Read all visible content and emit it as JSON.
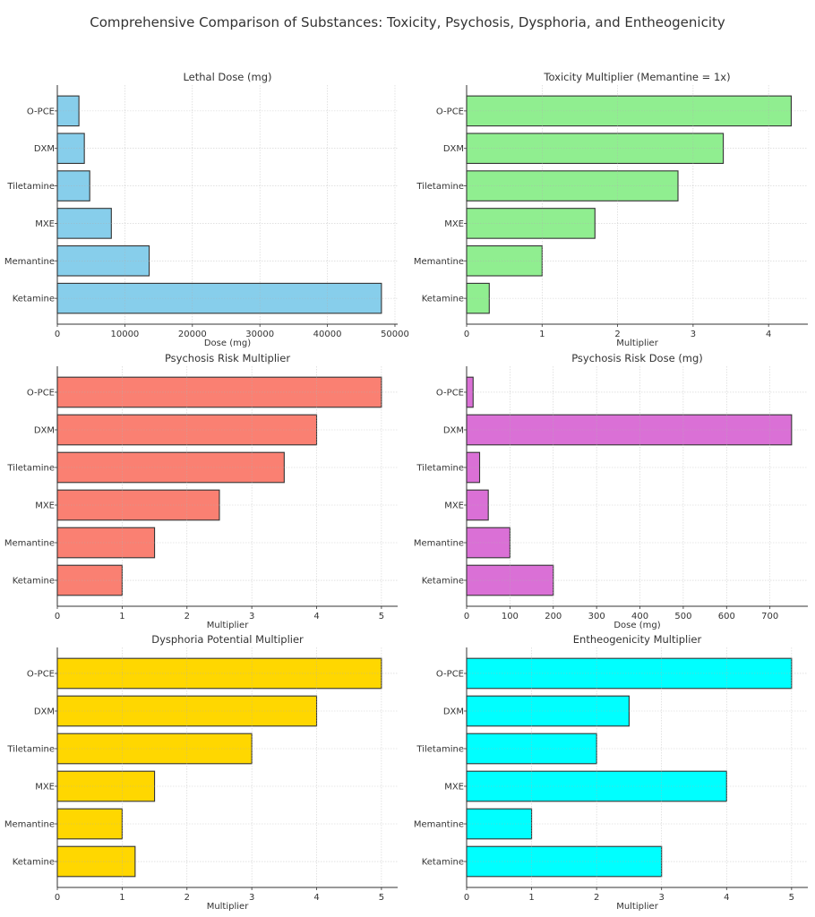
{
  "title": "Comprehensive Comparison of Substances: Toxicity, Psychosis, Dysphoria, and Entheogenicity",
  "chart_data": [
    {
      "type": "bar",
      "orientation": "horizontal",
      "title": "Lethal Dose (mg)",
      "xlabel": "Dose (mg)",
      "ylabel": "",
      "categories": [
        "Ketamine",
        "Memantine",
        "MXE",
        "Tiletamine",
        "DXM",
        "O-PCE"
      ],
      "values": [
        48000,
        13600,
        8000,
        4800,
        4000,
        3200
      ],
      "xlim": [
        0,
        50400
      ],
      "xticks": [
        0,
        10000,
        20000,
        30000,
        40000,
        50000
      ],
      "color": "#87CEEB",
      "grid": true
    },
    {
      "type": "bar",
      "orientation": "horizontal",
      "title": "Toxicity Multiplier (Memantine = 1x)",
      "xlabel": "Multiplier",
      "ylabel": "",
      "categories": [
        "Ketamine",
        "Memantine",
        "MXE",
        "Tiletamine",
        "DXM",
        "O-PCE"
      ],
      "values": [
        0.3,
        1.0,
        1.7,
        2.8,
        3.4,
        4.3
      ],
      "xlim": [
        0,
        4.52
      ],
      "xticks": [
        0,
        1,
        2,
        3,
        4
      ],
      "color": "#90EE90",
      "grid": true
    },
    {
      "type": "bar",
      "orientation": "horizontal",
      "title": "Psychosis Risk Multiplier",
      "xlabel": "Multiplier",
      "ylabel": "",
      "categories": [
        "Ketamine",
        "Memantine",
        "MXE",
        "Tiletamine",
        "DXM",
        "O-PCE"
      ],
      "values": [
        1,
        1.5,
        2.5,
        3.5,
        4,
        5
      ],
      "xlim": [
        0,
        5.25
      ],
      "xticks": [
        0,
        1,
        2,
        3,
        4,
        5
      ],
      "color": "#FA8072",
      "grid": true
    },
    {
      "type": "bar",
      "orientation": "horizontal",
      "title": "Psychosis Risk Dose (mg)",
      "xlabel": "Dose (mg)",
      "ylabel": "",
      "categories": [
        "Ketamine",
        "Memantine",
        "MXE",
        "Tiletamine",
        "DXM",
        "O-PCE"
      ],
      "values": [
        200,
        100,
        50,
        30,
        750,
        15
      ],
      "xlim": [
        0,
        787.5
      ],
      "xticks": [
        0,
        100,
        200,
        300,
        400,
        500,
        600,
        700
      ],
      "color": "#DA70D6",
      "grid": true
    },
    {
      "type": "bar",
      "orientation": "horizontal",
      "title": "Dysphoria Potential Multiplier",
      "xlabel": "Multiplier",
      "ylabel": "",
      "categories": [
        "Ketamine",
        "Memantine",
        "MXE",
        "Tiletamine",
        "DXM",
        "O-PCE"
      ],
      "values": [
        1.2,
        1,
        1.5,
        3,
        4,
        5
      ],
      "xlim": [
        0,
        5.25
      ],
      "xticks": [
        0,
        1,
        2,
        3,
        4,
        5
      ],
      "color": "#FFD700",
      "grid": true
    },
    {
      "type": "bar",
      "orientation": "horizontal",
      "title": "Entheogenicity Multiplier",
      "xlabel": "Multiplier",
      "ylabel": "",
      "categories": [
        "Ketamine",
        "Memantine",
        "MXE",
        "Tiletamine",
        "DXM",
        "O-PCE"
      ],
      "values": [
        3,
        1,
        4,
        2,
        2.5,
        5
      ],
      "xlim": [
        0,
        5.25
      ],
      "xticks": [
        0,
        1,
        2,
        3,
        4,
        5
      ],
      "color": "#00FFFF",
      "grid": true
    }
  ]
}
